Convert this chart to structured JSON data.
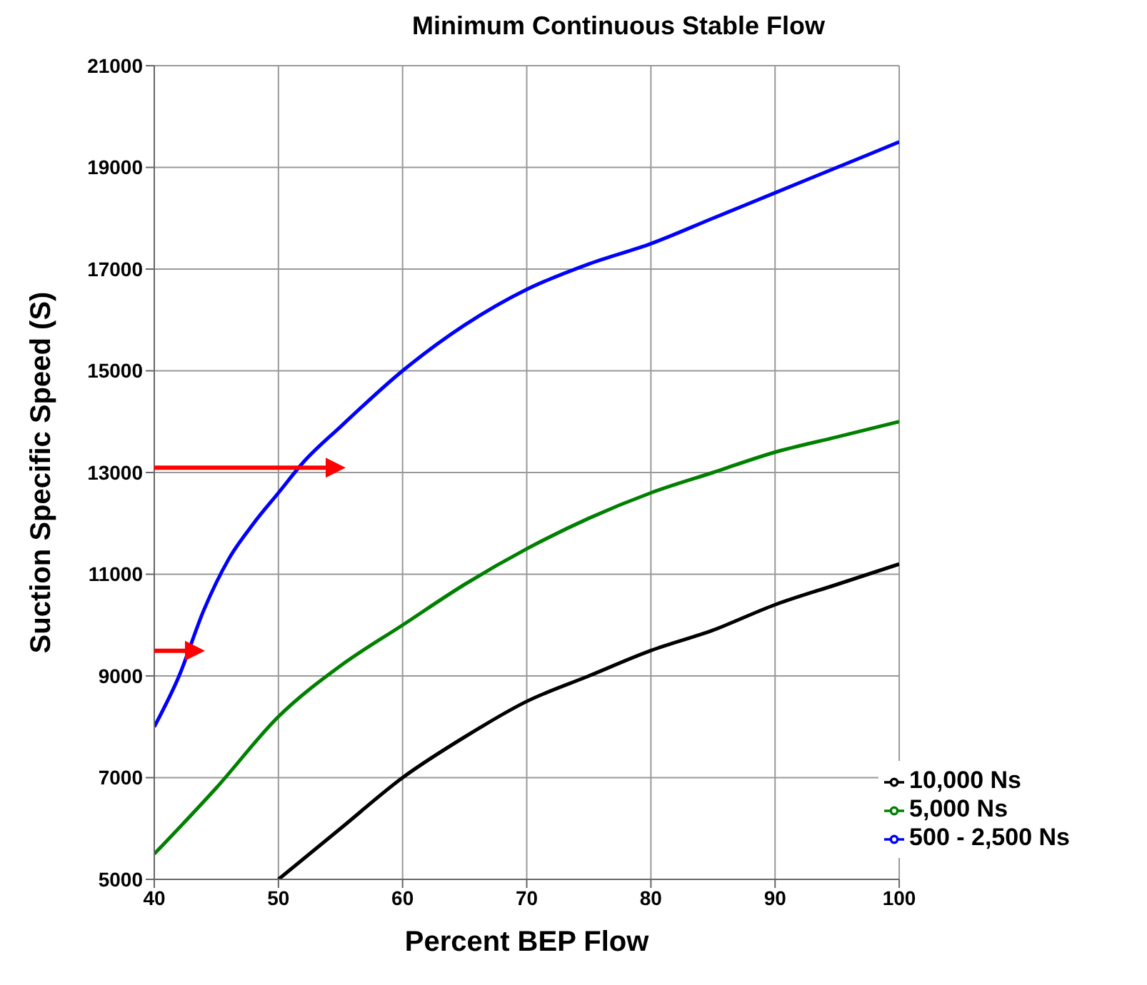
{
  "chart_data": {
    "type": "line",
    "title": "Minimum Continuous Stable Flow",
    "xlabel": "Percent BEP Flow",
    "ylabel": "Suction Specific Speed (S)",
    "xlim": [
      40,
      100
    ],
    "xticks": [
      40,
      50,
      60,
      70,
      80,
      90,
      100
    ],
    "ylim": [
      5000,
      21000
    ],
    "yticks": [
      5000,
      7000,
      9000,
      11000,
      13000,
      15000,
      17000,
      19000,
      21000
    ],
    "grid": true,
    "legend": "bottom right",
    "marker": "none",
    "line_style": "solid",
    "series": [
      {
        "name": "500 - 2,500 Ns",
        "color": "#0000ff",
        "x": [
          40,
          42,
          44,
          46,
          48,
          50,
          52,
          55,
          60,
          65,
          70,
          75,
          80,
          85,
          90,
          95,
          100
        ],
        "values": [
          8000,
          9000,
          10300,
          11300,
          12000,
          12600,
          13200,
          13900,
          15000,
          15900,
          16600,
          17100,
          17500,
          18000,
          18500,
          19000,
          19500
        ]
      },
      {
        "name": "5,000 Ns",
        "color": "#008000",
        "x": [
          40,
          45,
          50,
          55,
          60,
          65,
          70,
          75,
          80,
          85,
          90,
          95,
          100
        ],
        "values": [
          5500,
          6800,
          8200,
          9200,
          10000,
          10800,
          11500,
          12100,
          12600,
          13000,
          13400,
          13700,
          14000
        ]
      },
      {
        "name": "10,000 Ns",
        "color": "#000000",
        "x": [
          50,
          55,
          60,
          65,
          70,
          75,
          80,
          85,
          90,
          95,
          100
        ],
        "values": [
          5000,
          6000,
          7000,
          7800,
          8500,
          9000,
          9500,
          9900,
          10400,
          10800,
          11200
        ]
      }
    ]
  }
}
